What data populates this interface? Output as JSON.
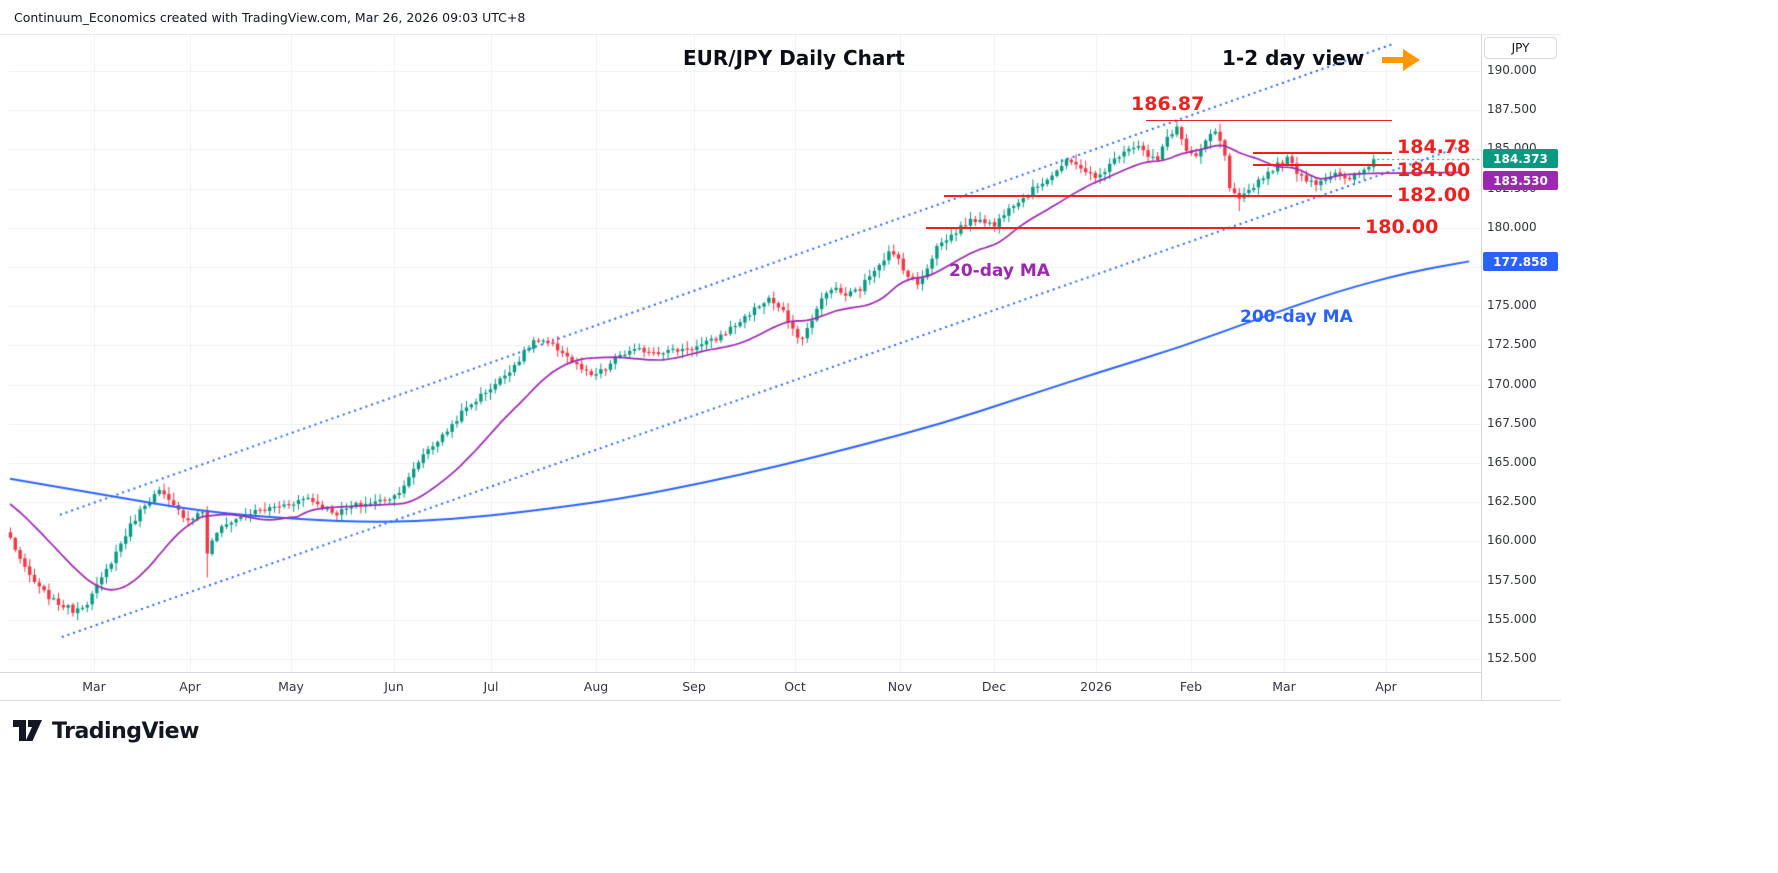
{
  "attribution": "Continuum_Economics created with TradingView.com, Mar 26, 2026 09:03 UTC+8",
  "title": "EUR/JPY Daily Chart",
  "view_note": "1-2 day view",
  "logo_text": "TradingView",
  "ma_labels": {
    "ma20": "20-day MA",
    "ma200": "200-day MA"
  },
  "price_scale": {
    "currency_label": "JPY",
    "ticks": [
      "190.000",
      "187.500",
      "185.000",
      "182.500",
      "180.000",
      "177.500",
      "175.000",
      "172.500",
      "170.000",
      "167.500",
      "165.000",
      "162.500",
      "160.000",
      "157.500",
      "155.000",
      "152.500"
    ]
  },
  "time_scale": {
    "ticks": [
      "Mar",
      "Apr",
      "May",
      "Jun",
      "Jul",
      "Aug",
      "Sep",
      "Oct",
      "Nov",
      "Dec",
      "2026",
      "Feb",
      "Mar",
      "Apr"
    ]
  },
  "price_tags": [
    {
      "name": "last-price",
      "text": "184.373",
      "value": 184.373,
      "color": "#089981"
    },
    {
      "name": "ma20-value",
      "text": "183.530",
      "value": 183.53,
      "color": "#9c27b0"
    },
    {
      "name": "ma200-value",
      "text": "177.858",
      "value": 177.858,
      "color": "#2962ff"
    }
  ],
  "levels": [
    {
      "label": "186.87",
      "value": 186.87
    },
    {
      "label": "184.78",
      "value": 184.78
    },
    {
      "label": "184.00",
      "value": 184.0
    },
    {
      "label": "182.00",
      "value": 182.0
    },
    {
      "label": "180.00",
      "value": 180.0
    }
  ],
  "colors": {
    "up": "#089981",
    "down": "#f23645",
    "ma20": "#9c27b0",
    "ma200": "#2962ff",
    "level": "#ef2020",
    "channel": "#2962ff",
    "accent_arrow": "#ff9800",
    "last_price": "#089981",
    "grid": "#eef0f5",
    "text": "#131722"
  },
  "chart_data": {
    "type": "candlestick",
    "title": "EUR/JPY Daily Chart",
    "symbol": "EUR/JPY",
    "timeframe": "Daily",
    "x_axis": [
      "Mar",
      "Apr",
      "May",
      "Jun",
      "Jul",
      "Aug",
      "Sep",
      "Oct",
      "Nov",
      "Dec",
      "2026",
      "Feb",
      "Mar",
      "Apr"
    ],
    "y_ticks": [
      190,
      187.5,
      185,
      182.5,
      180,
      177.5,
      175,
      172.5,
      170,
      167.5,
      165,
      162.5,
      160,
      157.5,
      155,
      152.5
    ],
    "ylim": [
      151.6,
      192.4
    ],
    "last_close": 184.373,
    "ma20_last": 183.53,
    "ma200_last": 177.858,
    "peak_high": 186.87,
    "support_resistance": [
      186.87,
      184.78,
      184.0,
      182.0,
      180.0
    ],
    "close_anchors": [
      [
        0,
        160.2
      ],
      [
        3,
        158.2
      ],
      [
        6,
        157.0
      ],
      [
        9,
        156.2
      ],
      [
        13,
        155.6
      ],
      [
        16,
        156.1
      ],
      [
        19,
        157.6
      ],
      [
        22,
        159.3
      ],
      [
        25,
        161.0
      ],
      [
        28,
        162.4
      ],
      [
        31,
        163.2
      ],
      [
        34,
        162.2
      ],
      [
        37,
        161.4
      ],
      [
        40,
        161.9
      ],
      [
        41,
        159.3
      ],
      [
        43,
        160.6
      ],
      [
        46,
        161.3
      ],
      [
        50,
        161.8
      ],
      [
        54,
        162.1
      ],
      [
        58,
        162.4
      ],
      [
        62,
        162.8
      ],
      [
        65,
        162.2
      ],
      [
        68,
        161.8
      ],
      [
        72,
        162.3
      ],
      [
        76,
        162.5
      ],
      [
        80,
        162.9
      ],
      [
        83,
        164.0
      ],
      [
        86,
        165.6
      ],
      [
        90,
        166.7
      ],
      [
        94,
        168.2
      ],
      [
        98,
        169.3
      ],
      [
        102,
        170.3
      ],
      [
        106,
        171.6
      ],
      [
        109,
        172.8
      ],
      [
        112,
        172.6
      ],
      [
        115,
        172.1
      ],
      [
        118,
        171.2
      ],
      [
        121,
        170.5
      ],
      [
        124,
        171.0
      ],
      [
        127,
        171.9
      ],
      [
        131,
        172.2
      ],
      [
        135,
        172.1
      ],
      [
        139,
        172.2
      ],
      [
        143,
        172.4
      ],
      [
        147,
        172.9
      ],
      [
        151,
        173.8
      ],
      [
        155,
        174.8
      ],
      [
        158,
        175.5
      ],
      [
        161,
        174.6
      ],
      [
        163,
        173.4
      ],
      [
        165,
        172.9
      ],
      [
        167,
        174.2
      ],
      [
        169,
        175.4
      ],
      [
        171,
        176.2
      ],
      [
        174,
        175.7
      ],
      [
        177,
        176.1
      ],
      [
        180,
        177.4
      ],
      [
        183,
        178.4
      ],
      [
        185,
        178.0
      ],
      [
        187,
        176.9
      ],
      [
        189,
        176.4
      ],
      [
        191,
        177.5
      ],
      [
        193,
        178.8
      ],
      [
        196,
        179.5
      ],
      [
        199,
        180.3
      ],
      [
        202,
        180.6
      ],
      [
        205,
        180.1
      ],
      [
        208,
        181.4
      ],
      [
        211,
        181.9
      ],
      [
        214,
        182.7
      ],
      [
        217,
        183.4
      ],
      [
        220,
        184.2
      ],
      [
        223,
        183.9
      ],
      [
        226,
        183.1
      ],
      [
        229,
        184.0
      ],
      [
        232,
        185.0
      ],
      [
        235,
        185.3
      ],
      [
        237,
        184.5
      ],
      [
        239,
        184.3
      ],
      [
        241,
        185.8
      ],
      [
        243,
        186.4
      ],
      [
        245,
        184.9
      ],
      [
        247,
        184.4
      ],
      [
        249,
        185.5
      ],
      [
        251,
        186.2
      ],
      [
        253,
        184.6
      ],
      [
        254,
        182.4
      ],
      [
        256,
        181.7
      ],
      [
        258,
        182.4
      ],
      [
        261,
        183.3
      ],
      [
        264,
        184.0
      ],
      [
        266,
        184.4
      ],
      [
        268,
        183.6
      ],
      [
        270,
        183.1
      ],
      [
        272,
        182.9
      ],
      [
        274,
        183.2
      ],
      [
        276,
        183.4
      ],
      [
        278,
        183.0
      ],
      [
        280,
        183.3
      ],
      [
        282,
        183.7
      ],
      [
        284,
        184.373
      ]
    ],
    "wick_events": [
      {
        "i": 41,
        "low": 157.7
      },
      {
        "i": 243,
        "high": 186.87
      },
      {
        "i": 256,
        "low": 181.05
      }
    ],
    "ma200_anchors": [
      [
        0,
        164.0
      ],
      [
        19,
        163.0
      ],
      [
        40,
        161.9
      ],
      [
        60,
        161.4
      ],
      [
        77,
        161.2
      ],
      [
        92,
        161.4
      ],
      [
        108,
        161.9
      ],
      [
        127,
        162.7
      ],
      [
        144,
        163.7
      ],
      [
        160,
        164.8
      ],
      [
        177,
        166.1
      ],
      [
        194,
        167.5
      ],
      [
        210,
        169.1
      ],
      [
        227,
        170.8
      ],
      [
        244,
        172.4
      ],
      [
        260,
        174.2
      ],
      [
        277,
        176.0
      ],
      [
        292,
        177.2
      ],
      [
        304,
        177.858
      ]
    ],
    "channel_lines": [
      {
        "i1": 10.4,
        "p1": 161.7,
        "i2": 287.9,
        "p2": 191.7
      },
      {
        "i1": 10.8,
        "p1": 153.9,
        "i2": 302.5,
        "p2": 185.2
      }
    ]
  }
}
